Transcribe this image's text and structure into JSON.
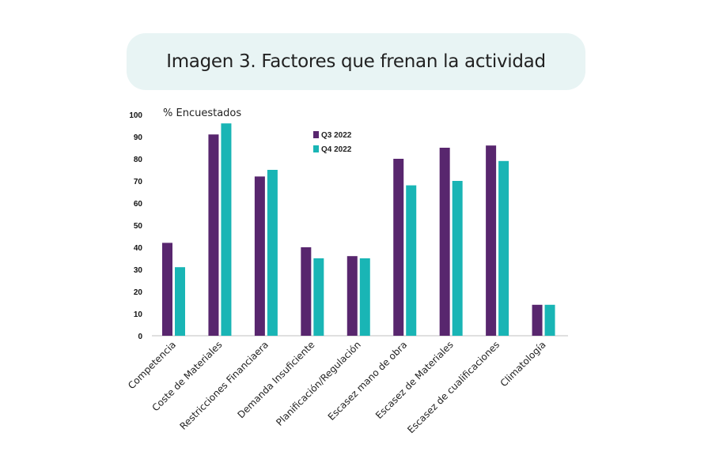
{
  "header": {
    "title": "Imagen 3. Factores que frenan la actividad"
  },
  "chart_data": {
    "type": "bar",
    "title": "Imagen 3. Factores que frenan la actividad",
    "ylabel": "% Encuestados",
    "xlabel": "",
    "ylim": [
      0,
      100
    ],
    "yticks": [
      0,
      10,
      20,
      30,
      40,
      50,
      60,
      70,
      80,
      90,
      100
    ],
    "grid": false,
    "legend_position": "top-center",
    "categories": [
      "Competencia",
      "Coste de Materiales",
      "Restricciones Financiaera",
      "Demanda Insuficiente",
      "Planificación/Regulación",
      "Escasez mano de obra",
      "Escasez de Materiales",
      "Escasez de cualificaciones",
      "Climatología"
    ],
    "series": [
      {
        "name": "Q3 2022",
        "color": "#58266e",
        "values": [
          42,
          91,
          72,
          40,
          36,
          80,
          85,
          86,
          14
        ]
      },
      {
        "name": "Q4 2022",
        "color": "#19b5b5",
        "values": [
          31,
          96,
          75,
          35,
          35,
          68,
          70,
          79,
          14
        ]
      }
    ]
  }
}
